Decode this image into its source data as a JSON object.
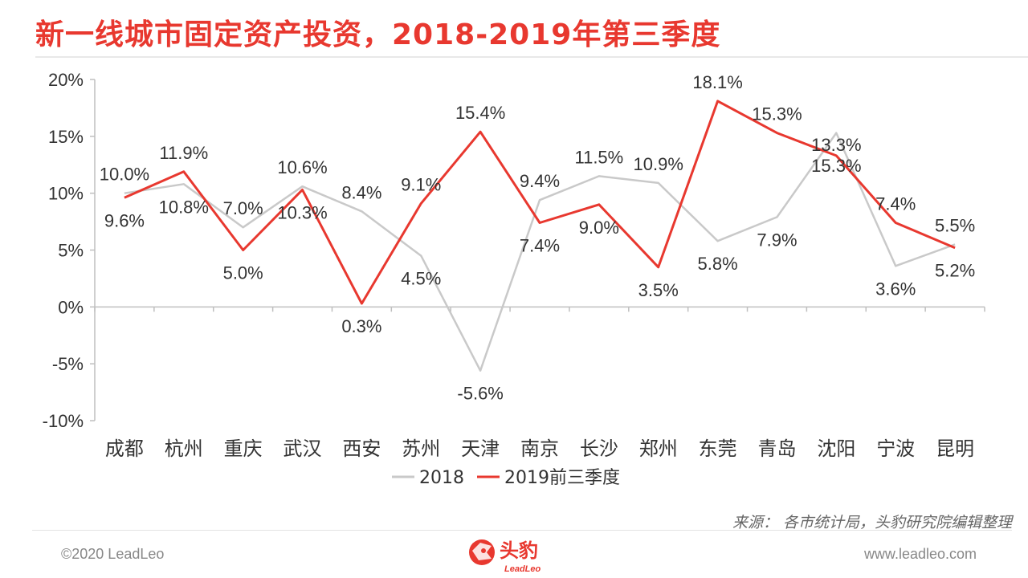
{
  "title": "新一线城市固定资产投资，2018-2019年第三季度",
  "footer": {
    "source": "来源：  各市统计局，头豹研究院编辑整理",
    "copyright": "©2020 LeadLeo",
    "website": "www.leadleo.com",
    "logo_text": "头豹",
    "logo_subtext": "LeadLeo"
  },
  "colors": {
    "title": "#e8382f",
    "series_2018": "#c9c9c9",
    "series_2019": "#e8382f",
    "axis": "#bfbfbf",
    "text": "#333333"
  },
  "chart_data": {
    "type": "line",
    "categories": [
      "成都",
      "杭州",
      "重庆",
      "武汉",
      "西安",
      "苏州",
      "天津",
      "南京",
      "长沙",
      "郑州",
      "东莞",
      "青岛",
      "沈阳",
      "宁波",
      "昆明"
    ],
    "series": [
      {
        "name": "2018",
        "values": [
          10.0,
          10.8,
          7.0,
          10.6,
          8.4,
          4.5,
          -5.6,
          9.4,
          11.5,
          10.9,
          5.8,
          7.9,
          15.3,
          3.6,
          5.5
        ],
        "labels": [
          "10.0%",
          "10.8%",
          "7.0%",
          "10.6%",
          "8.4%",
          "4.5%",
          "-5.6%",
          "9.4%",
          "11.5%",
          "10.9%",
          "5.8%",
          "7.9%",
          "15.3%",
          "3.6%",
          "5.5%"
        ]
      },
      {
        "name": "2019前三季度",
        "values": [
          9.6,
          11.9,
          5.0,
          10.3,
          0.3,
          9.1,
          15.4,
          7.4,
          9.0,
          3.5,
          18.1,
          15.3,
          13.3,
          7.4,
          5.2
        ],
        "labels": [
          "9.6%",
          "11.9%",
          "5.0%",
          "10.3%",
          "0.3%",
          "9.1%",
          "15.4%",
          "7.4%",
          "9.0%",
          "3.5%",
          "18.1%",
          "15.3%",
          "13.3%",
          "7.4%",
          "5.2%"
        ]
      }
    ],
    "y_ticks": [
      "20%",
      "15%",
      "10%",
      "5%",
      "0%",
      "-5%",
      "-10%"
    ],
    "ylim": [
      -10,
      20
    ],
    "legend_position": "bottom",
    "grid": false
  }
}
